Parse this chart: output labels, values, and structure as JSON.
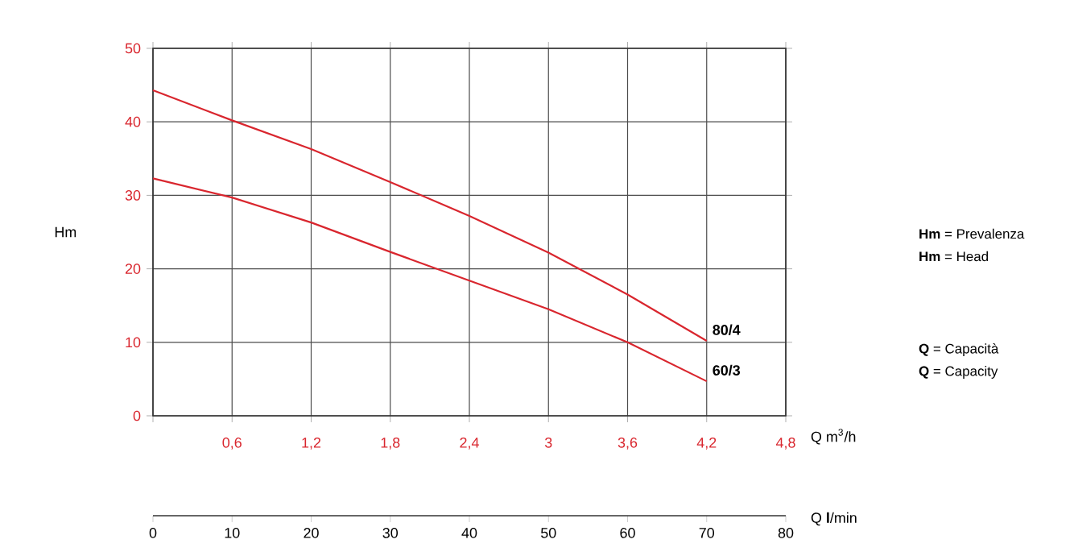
{
  "chart_data": {
    "type": "line",
    "xlabel": "Q m$^{3}$/h",
    "ylabel": "Hm",
    "x2label": "Q **l**/min",
    "x": [
      0,
      0.6,
      1.2,
      1.8,
      2.4,
      3,
      3.6,
      4.2
    ],
    "series": [
      {
        "name": "80/4",
        "color": "#d9262e",
        "values": [
          44.3,
          40.2,
          36.3,
          31.8,
          27.2,
          22.2,
          16.5,
          10.2
        ]
      },
      {
        "name": "60/3",
        "color": "#d9262e",
        "values": [
          32.3,
          29.7,
          26.3,
          22.3,
          18.4,
          14.5,
          10,
          4.7
        ]
      }
    ],
    "xlim": [
      0,
      4.8
    ],
    "xticks": [
      {
        "value": 0,
        "label": null
      },
      {
        "value": 0.6,
        "label": "0,6"
      },
      {
        "value": 1.2,
        "label": "1,2"
      },
      {
        "value": 1.8,
        "label": "1,8"
      },
      {
        "value": 2.4,
        "label": "2,4"
      },
      {
        "value": 3,
        "label": "3"
      },
      {
        "value": 3.6,
        "label": "3,6"
      },
      {
        "value": 4.2,
        "label": "4,2"
      },
      {
        "value": 4.8,
        "label": "4,8"
      }
    ],
    "ylim": [
      0,
      50
    ],
    "yticks": [
      0,
      10,
      20,
      30,
      40,
      50
    ],
    "x2lim": [
      0,
      80
    ],
    "x2ticks": [
      0,
      10,
      20,
      30,
      40,
      50,
      60,
      70,
      80
    ],
    "grid": true,
    "line_style": "solid",
    "marker": "none",
    "annotations": [
      "**Hm** = Prevalenza",
      "**Hm** = Head",
      "**Q** = Capacità",
      "**Q** = Capacity"
    ]
  }
}
